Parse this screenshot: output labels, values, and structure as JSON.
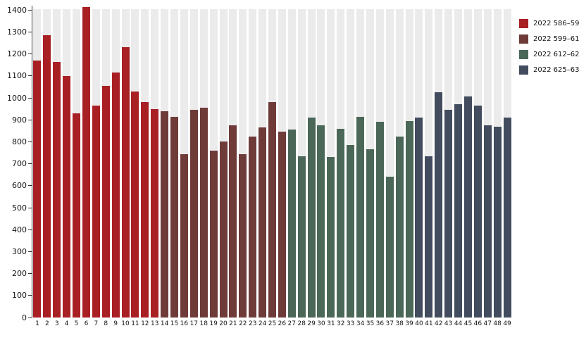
{
  "chart_data": {
    "type": "bar",
    "title": "",
    "xlabel": "",
    "ylabel": "",
    "categories": [
      1,
      2,
      3,
      4,
      5,
      6,
      7,
      8,
      9,
      10,
      11,
      12,
      13,
      14,
      15,
      16,
      17,
      18,
      19,
      20,
      21,
      22,
      23,
      24,
      25,
      26,
      27,
      28,
      29,
      30,
      31,
      32,
      33,
      34,
      35,
      36,
      37,
      38,
      39,
      40,
      41,
      42,
      43,
      44,
      45,
      46,
      47,
      48,
      49
    ],
    "values": [
      1170,
      1285,
      1165,
      1100,
      930,
      1415,
      965,
      1055,
      1115,
      1230,
      1030,
      980,
      950,
      940,
      915,
      745,
      945,
      955,
      760,
      800,
      875,
      745,
      825,
      865,
      980,
      845,
      855,
      735,
      910,
      875,
      730,
      860,
      785,
      915,
      765,
      890,
      640,
      825,
      895,
      910,
      735,
      1025,
      945,
      970,
      1005,
      965,
      875,
      870,
      910
    ],
    "groups": [
      {
        "label": "2022 586–59",
        "color": "#a81f24",
        "start": 1,
        "end": 13
      },
      {
        "label": "2022 599–61",
        "color": "#6f3b39",
        "start": 14,
        "end": 26
      },
      {
        "label": "2022 612–62",
        "color": "#4b6758",
        "start": 27,
        "end": 39
      },
      {
        "label": "2022 625–63",
        "color": "#424c5e",
        "start": 40,
        "end": 49
      }
    ],
    "ylim": [
      0,
      1420
    ],
    "yticks": [
      0,
      100,
      200,
      300,
      400,
      500,
      600,
      700,
      800,
      900,
      1000,
      1100,
      1200,
      1300,
      1400
    ],
    "grid": false,
    "legend_position": "top-right",
    "track_color": "#ebebeb"
  },
  "legend": {
    "items": [
      {
        "label": "2022 586–59"
      },
      {
        "label": "2022 599–61"
      },
      {
        "label": "2022 612–62"
      },
      {
        "label": "2022 625–63"
      }
    ]
  }
}
